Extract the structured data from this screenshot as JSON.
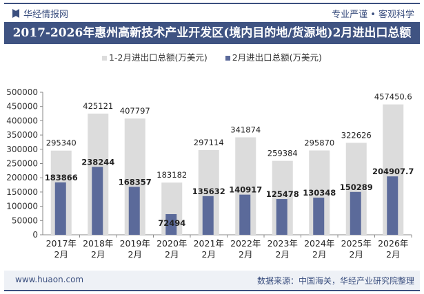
{
  "header": {
    "brand": "华经情报网",
    "slogan": "专业严谨 • 客观科学",
    "title": "2017-2026年惠州高新技术产业开发区(境内目的地/货源地)2月进出口总额"
  },
  "footer": {
    "url": "www.huaon.com",
    "source": "数据来源：中国海关，华经产业研究院整理"
  },
  "chart_data": {
    "type": "bar",
    "categories": [
      "2017年\n2月",
      "2018年\n2月",
      "2019年\n2月",
      "2020年\n2月",
      "2021年\n2月",
      "2022年\n2月",
      "2023年\n2月",
      "2024年\n2月",
      "2025年\n2月",
      "2026年\n2月"
    ],
    "series": [
      {
        "name": "1-2月进出口总额(万美元)",
        "color": "#dcdcdc",
        "values": [
          295340,
          425121,
          407797,
          183182,
          297114,
          341874,
          259384,
          295870,
          322626,
          457450.6
        ]
      },
      {
        "name": "2月进出口总额(万美元)",
        "color": "#5b6a9a",
        "values": [
          183866,
          238244,
          168357,
          72494,
          135632,
          140917,
          125478,
          130348,
          150289,
          204907.7
        ]
      }
    ],
    "ylim": [
      0,
      500000
    ],
    "yticks": [
      0,
      50000,
      100000,
      150000,
      200000,
      250000,
      300000,
      350000,
      400000,
      450000,
      500000
    ],
    "grid": false,
    "legend": "top"
  }
}
